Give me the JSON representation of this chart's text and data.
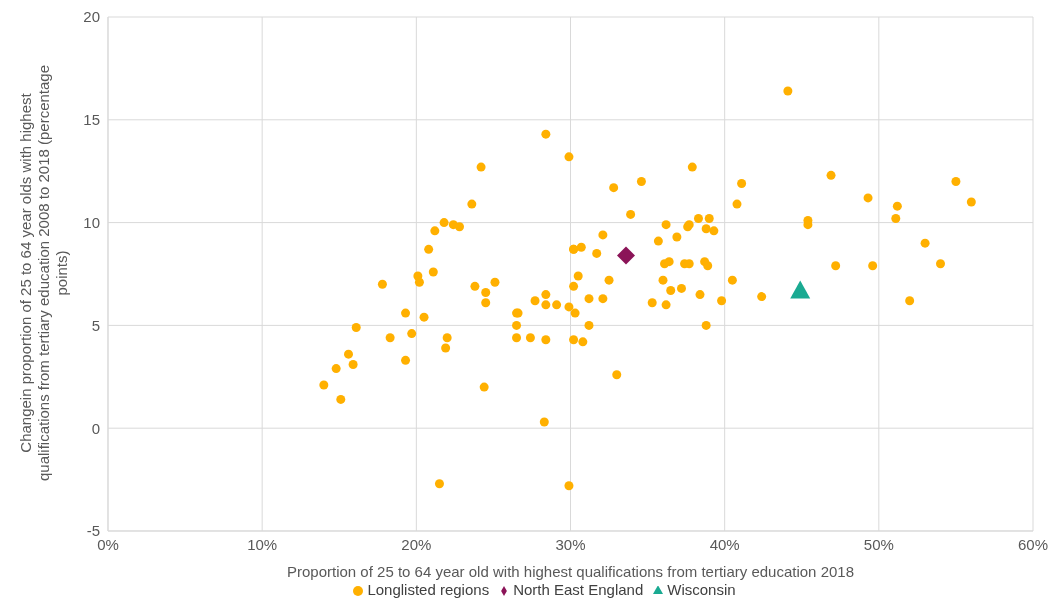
{
  "chart_data": {
    "type": "scatter",
    "xlabel": "Proportion of 25 to 64 year old with highest qualifications from tertiary education 2018",
    "ylabel": "Changein proportion of 25 to 64 year olds with highest qualifications from tertiary education 2008 to 2018 (percentage points)",
    "xlim": [
      0,
      60
    ],
    "xticks": [
      {
        "value": 0,
        "label": "0%"
      },
      {
        "value": 10,
        "label": "10%"
      },
      {
        "value": 20,
        "label": "20%"
      },
      {
        "value": 30,
        "label": "30%"
      },
      {
        "value": 40,
        "label": "40%"
      },
      {
        "value": 50,
        "label": "50%"
      },
      {
        "value": 60,
        "label": "60%"
      }
    ],
    "ylim": [
      -5,
      20
    ],
    "yticks": [
      -5,
      0,
      5,
      10,
      15,
      20
    ],
    "grid": true,
    "legend": "bottom",
    "series": [
      {
        "name": "Longlisted regions",
        "color": "#ffb000",
        "marker": "circle",
        "x": [
          14.0,
          14.8,
          15.1,
          15.6,
          15.9,
          16.1,
          17.8,
          18.3,
          19.3,
          19.3,
          19.7,
          20.1,
          20.2,
          20.5,
          20.8,
          21.1,
          21.2,
          21.5,
          21.8,
          21.9,
          22.0,
          22.4,
          22.8,
          23.6,
          23.8,
          24.2,
          24.4,
          24.5,
          24.5,
          25.1,
          26.5,
          26.5,
          26.5,
          26.6,
          27.4,
          27.7,
          28.4,
          28.4,
          28.4,
          28.3,
          28.4,
          29.1,
          29.9,
          29.9,
          29.9,
          30.2,
          30.2,
          30.2,
          30.3,
          30.2,
          30.7,
          30.5,
          30.8,
          31.2,
          31.2,
          31.7,
          32.1,
          32.1,
          32.5,
          32.8,
          33.0,
          33.9,
          34.6,
          35.3,
          35.7,
          36.0,
          36.1,
          36.2,
          36.2,
          36.4,
          36.5,
          36.9,
          37.2,
          37.4,
          37.6,
          37.7,
          37.7,
          37.9,
          38.3,
          38.4,
          38.7,
          38.8,
          38.8,
          38.9,
          39.0,
          39.3,
          39.8,
          40.5,
          40.8,
          41.1,
          42.4,
          44.1,
          45.4,
          45.4,
          46.9,
          47.2,
          49.3,
          49.6,
          51.1,
          51.2,
          52.0,
          53.0,
          54.0,
          55.0,
          56.0
        ],
        "values": [
          2.1,
          2.9,
          1.4,
          3.6,
          3.1,
          4.9,
          7.0,
          4.4,
          5.6,
          3.3,
          4.6,
          7.4,
          7.1,
          5.4,
          8.7,
          7.6,
          9.6,
          -2.7,
          10.0,
          3.9,
          4.4,
          9.9,
          9.8,
          10.9,
          6.9,
          12.7,
          2.0,
          6.6,
          6.1,
          7.1,
          5.0,
          4.4,
          5.6,
          5.6,
          4.4,
          6.2,
          14.3,
          6.5,
          4.3,
          0.3,
          6.0,
          6.0,
          13.2,
          5.9,
          -2.8,
          8.7,
          6.9,
          4.3,
          5.6,
          8.7,
          8.8,
          7.4,
          4.2,
          5.0,
          6.3,
          8.5,
          9.4,
          6.3,
          7.2,
          11.7,
          2.6,
          10.4,
          12.0,
          6.1,
          9.1,
          7.2,
          8.0,
          9.9,
          6.0,
          8.1,
          6.7,
          9.3,
          6.8,
          8.0,
          9.8,
          9.9,
          8.0,
          12.7,
          10.2,
          6.5,
          8.1,
          9.7,
          5.0,
          7.9,
          10.2,
          9.6,
          6.2,
          7.2,
          10.9,
          11.9,
          6.4,
          16.4,
          10.1,
          9.9,
          12.3,
          7.9,
          11.2,
          7.9,
          10.2,
          10.8,
          6.2,
          9.0,
          8.0,
          12.0,
          11.0
        ]
      },
      {
        "name": "North East England",
        "color": "#8b1458",
        "marker": "diamond",
        "x": [
          33.6
        ],
        "values": [
          8.4
        ]
      },
      {
        "name": "Wisconsin",
        "color": "#1aaa92",
        "marker": "triangle",
        "x": [
          44.9
        ],
        "values": [
          6.7
        ]
      }
    ]
  }
}
